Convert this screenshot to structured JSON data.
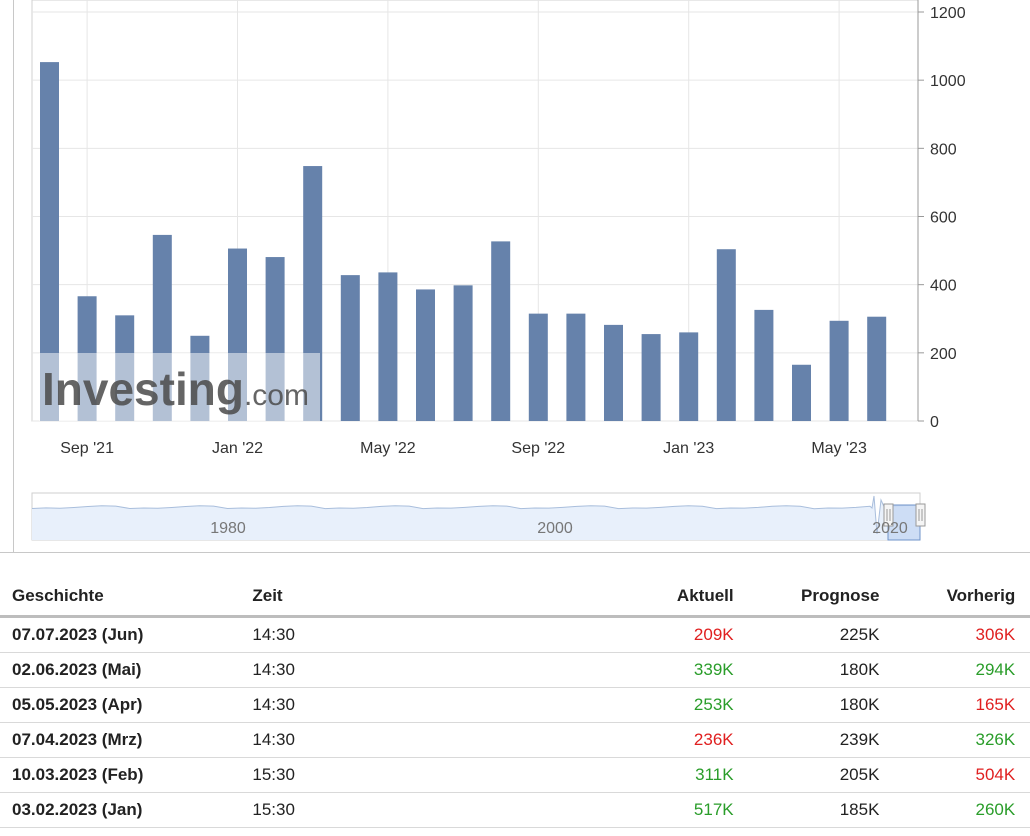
{
  "chart_data": {
    "type": "bar",
    "categories": [
      "Aug '21",
      "Sep '21",
      "Oct '21",
      "Nov '21",
      "Dec '21",
      "Jan '22",
      "Feb '22",
      "Mar '22",
      "Apr '22",
      "May '22",
      "Jun '22",
      "Jul '22",
      "Aug '22",
      "Sep '22",
      "Oct '22",
      "Nov '22",
      "Dec '22",
      "Jan '23",
      "Feb '23",
      "Mar '23",
      "Apr '23",
      "May '23",
      "Jun '23"
    ],
    "values": [
      1053,
      366,
      310,
      546,
      250,
      506,
      481,
      748,
      428,
      436,
      386,
      398,
      527,
      315,
      315,
      282,
      255,
      260,
      504,
      326,
      165,
      294,
      306
    ],
    "x_tick_labels": [
      {
        "label": "Sep '21",
        "index": 1
      },
      {
        "label": "Jan '22",
        "index": 5
      },
      {
        "label": "May '22",
        "index": 9
      },
      {
        "label": "Sep '22",
        "index": 13
      },
      {
        "label": "Jan '23",
        "index": 17
      },
      {
        "label": "May '23",
        "index": 21
      }
    ],
    "yticks": [
      0,
      200,
      400,
      600,
      800,
      1000,
      1200
    ],
    "ylim": [
      0,
      1200
    ],
    "y_axis_side": "right",
    "grid": true,
    "bar_color": "#6682ab",
    "watermark": "Investing.com",
    "navigator": {
      "labels": [
        "1980",
        "2000",
        "2020"
      ]
    }
  },
  "table": {
    "headers": {
      "history": "Geschichte",
      "time": "Zeit",
      "actual": "Aktuell",
      "forecast": "Prognose",
      "previous": "Vorherig"
    },
    "rows": [
      {
        "date": "07.07.2023 (Jun)",
        "time": "14:30",
        "actual": "209K",
        "actual_status": "neg",
        "forecast": "225K",
        "previous": "306K",
        "previous_status": "neg"
      },
      {
        "date": "02.06.2023 (Mai)",
        "time": "14:30",
        "actual": "339K",
        "actual_status": "pos",
        "forecast": "180K",
        "previous": "294K",
        "previous_status": "pos"
      },
      {
        "date": "05.05.2023 (Apr)",
        "time": "14:30",
        "actual": "253K",
        "actual_status": "pos",
        "forecast": "180K",
        "previous": "165K",
        "previous_status": "neg"
      },
      {
        "date": "07.04.2023 (Mrz)",
        "time": "14:30",
        "actual": "236K",
        "actual_status": "neg",
        "forecast": "239K",
        "previous": "326K",
        "previous_status": "pos"
      },
      {
        "date": "10.03.2023 (Feb)",
        "time": "15:30",
        "actual": "311K",
        "actual_status": "pos",
        "forecast": "205K",
        "previous": "504K",
        "previous_status": "neg"
      },
      {
        "date": "03.02.2023 (Jan)",
        "time": "15:30",
        "actual": "517K",
        "actual_status": "pos",
        "forecast": "185K",
        "previous": "260K",
        "previous_status": "pos"
      }
    ]
  },
  "colors": {
    "positive": "#2a9d2a",
    "negative": "#e02020",
    "grid": "#e6e6e6"
  }
}
